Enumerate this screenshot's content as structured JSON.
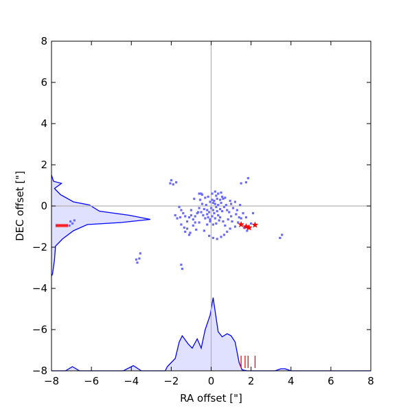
{
  "chart_data": {
    "type": "scatter",
    "title": "",
    "xlabel": "RA offset [\"]",
    "ylabel": "DEC offset [\"]",
    "xlim": [
      -8,
      8
    ],
    "ylim": [
      -8,
      8
    ],
    "xticks": [
      -8,
      -6,
      -4,
      -2,
      0,
      2,
      4,
      6,
      8
    ],
    "yticks": [
      -8,
      -6,
      -4,
      -2,
      0,
      2,
      4,
      6,
      8
    ],
    "xtick_labels": [
      "−8",
      "−6",
      "−4",
      "−2",
      "0",
      "2",
      "4",
      "6",
      "8"
    ],
    "ytick_labels": [
      "−8",
      "−6",
      "−4",
      "−2",
      "0",
      "2",
      "4",
      "6",
      "8"
    ],
    "grid": false,
    "reference_lines": {
      "x": 0,
      "y": 0,
      "color": "#b0b0b0"
    },
    "colors": {
      "points": "#6b6bff",
      "histogram_line": "#0000ff",
      "histogram_fill": "#e0e0ff",
      "markers": "#ff0000"
    },
    "series": [
      {
        "type": "scatter",
        "points": [
          [
            0.05,
            0.3
          ],
          [
            0.15,
            0.25
          ],
          [
            0.3,
            0.35
          ],
          [
            0.45,
            0.3
          ],
          [
            0.1,
            0.15
          ],
          [
            -0.05,
            0.2
          ],
          [
            0.2,
            0.1
          ],
          [
            0.35,
            0.05
          ],
          [
            0.5,
            0.15
          ],
          [
            0.6,
            0.35
          ],
          [
            0.7,
            0.4
          ],
          [
            0.55,
            0.45
          ],
          [
            0.25,
            0.5
          ],
          [
            0.0,
            -0.1
          ],
          [
            0.1,
            -0.2
          ],
          [
            -0.1,
            -0.3
          ],
          [
            0.15,
            -0.35
          ],
          [
            0.3,
            -0.25
          ],
          [
            -0.2,
            -0.4
          ],
          [
            0.05,
            -0.5
          ],
          [
            -0.15,
            -0.55
          ],
          [
            0.2,
            -0.6
          ],
          [
            0.35,
            -0.45
          ],
          [
            0.45,
            -0.15
          ],
          [
            0.55,
            -0.25
          ],
          [
            0.65,
            -0.05
          ],
          [
            0.75,
            0.05
          ],
          [
            0.8,
            -0.2
          ],
          [
            0.9,
            -0.3
          ],
          [
            0.4,
            -0.7
          ],
          [
            0.25,
            -0.85
          ],
          [
            0.1,
            -0.9
          ],
          [
            -0.05,
            -0.75
          ],
          [
            -0.3,
            -0.6
          ],
          [
            -0.4,
            -0.45
          ],
          [
            -0.5,
            -0.3
          ],
          [
            -0.35,
            -0.15
          ],
          [
            -0.25,
            0.05
          ],
          [
            -0.45,
            0.1
          ],
          [
            -0.6,
            -0.1
          ],
          [
            -0.7,
            -0.35
          ],
          [
            -0.8,
            -0.5
          ],
          [
            -0.9,
            -0.65
          ],
          [
            -1.0,
            -0.45
          ],
          [
            -1.1,
            -0.55
          ],
          [
            -1.2,
            -0.75
          ],
          [
            -1.3,
            -0.5
          ],
          [
            -1.4,
            -0.35
          ],
          [
            -1.5,
            -0.2
          ],
          [
            -1.6,
            -0.05
          ],
          [
            -1.5,
            -0.9
          ],
          [
            -1.35,
            -1.05
          ],
          [
            -1.2,
            -1.1
          ],
          [
            -1.05,
            -1.3
          ],
          [
            -0.9,
            -0.95
          ],
          [
            -0.75,
            -1.15
          ],
          [
            -0.6,
            -0.8
          ],
          [
            -1.7,
            -0.6
          ],
          [
            -1.8,
            -0.45
          ],
          [
            -1.55,
            -0.55
          ],
          [
            -1.3,
            -1.25
          ],
          [
            -1.1,
            -1.4
          ],
          [
            -0.65,
            -0.3
          ],
          [
            -0.55,
            0.3
          ],
          [
            -0.45,
            0.55
          ],
          [
            -0.3,
            0.4
          ],
          [
            -0.15,
            0.45
          ],
          [
            0.05,
            0.6
          ],
          [
            0.2,
            0.7
          ],
          [
            0.35,
            0.6
          ],
          [
            0.5,
            0.65
          ],
          [
            -0.5,
            0.6
          ],
          [
            -0.6,
            0.6
          ],
          [
            1.0,
            0.1
          ],
          [
            1.1,
            -0.1
          ],
          [
            1.2,
            0.2
          ],
          [
            1.3,
            -0.2
          ],
          [
            1.45,
            0.05
          ],
          [
            1.6,
            -0.35
          ],
          [
            1.75,
            -0.55
          ],
          [
            1.5,
            -0.6
          ],
          [
            1.35,
            -0.8
          ],
          [
            1.2,
            -1.0
          ],
          [
            1.05,
            -0.75
          ],
          [
            0.95,
            -1.1
          ],
          [
            0.8,
            -1.25
          ],
          [
            0.65,
            -1.4
          ],
          [
            0.5,
            -1.5
          ],
          [
            0.3,
            -1.6
          ],
          [
            0.1,
            -1.55
          ],
          [
            -0.1,
            -1.45
          ],
          [
            1.0,
            -0.5
          ],
          [
            0.85,
            -0.65
          ],
          [
            1.5,
            1.1
          ],
          [
            1.75,
            1.15
          ],
          [
            1.85,
            1.35
          ],
          [
            1.65,
            -1.05
          ],
          [
            1.8,
            -1.2
          ],
          [
            2.0,
            -0.85
          ],
          [
            2.1,
            -0.35
          ],
          [
            -2.05,
            1.1
          ],
          [
            -2.0,
            1.25
          ],
          [
            -1.9,
            1.05
          ],
          [
            -1.75,
            1.15
          ],
          [
            -3.55,
            -2.3
          ],
          [
            -3.6,
            -2.55
          ],
          [
            -3.75,
            -2.6
          ],
          [
            -3.7,
            -2.75
          ],
          [
            -1.5,
            -2.85
          ],
          [
            -1.45,
            -3.05
          ],
          [
            3.55,
            -1.4
          ],
          [
            3.45,
            -1.55
          ],
          [
            -7.05,
            -0.75
          ],
          [
            -6.95,
            -0.85
          ],
          [
            -6.85,
            -0.7
          ],
          [
            -7.1,
            -0.95
          ],
          [
            0.45,
            -0.55
          ],
          [
            0.6,
            -0.75
          ],
          [
            -0.2,
            -0.9
          ],
          [
            -0.35,
            -1.2
          ],
          [
            0.7,
            -0.95
          ],
          [
            0.95,
            0.25
          ],
          [
            -0.85,
            0.35
          ],
          [
            -0.2,
            -0.2
          ],
          [
            0.25,
            -0.05
          ],
          [
            -0.05,
            -0.65
          ],
          [
            1.25,
            -0.4
          ],
          [
            1.4,
            -0.55
          ],
          [
            -1.0,
            -0.2
          ],
          [
            -0.8,
            -0.8
          ]
        ]
      }
    ],
    "x_histogram": [
      [
        -8,
        -8
      ],
      [
        -7.6,
        -8
      ],
      [
        -7.3,
        -8
      ],
      [
        -6.95,
        -7.8
      ],
      [
        -6.6,
        -8
      ],
      [
        -4.4,
        -8
      ],
      [
        -3.9,
        -7.75
      ],
      [
        -3.5,
        -8
      ],
      [
        -2.3,
        -8
      ],
      [
        -2.2,
        -7.8
      ],
      [
        -2.1,
        -7.7
      ],
      [
        -1.8,
        -7.4
      ],
      [
        -1.6,
        -6.6
      ],
      [
        -1.45,
        -6.3
      ],
      [
        -1.15,
        -6.7
      ],
      [
        -0.95,
        -6.9
      ],
      [
        -0.7,
        -6.45
      ],
      [
        -0.5,
        -6.9
      ],
      [
        -0.3,
        -6.0
      ],
      [
        -0.05,
        -5.3
      ],
      [
        0.1,
        -4.45
      ],
      [
        0.35,
        -6.1
      ],
      [
        0.55,
        -6.35
      ],
      [
        0.8,
        -6.2
      ],
      [
        1.0,
        -6.3
      ],
      [
        1.2,
        -6.6
      ],
      [
        1.4,
        -7.6
      ],
      [
        1.55,
        -7.95
      ],
      [
        1.8,
        -8
      ],
      [
        3.2,
        -8
      ],
      [
        3.5,
        -7.9
      ],
      [
        3.7,
        -7.9
      ],
      [
        4.0,
        -8
      ],
      [
        8,
        -8
      ]
    ],
    "y_histogram": [
      [
        -8,
        1.5
      ],
      [
        -7.9,
        1.2
      ],
      [
        -7.5,
        1.1
      ],
      [
        -7.85,
        0.85
      ],
      [
        -7.8,
        0.8
      ],
      [
        -7.55,
        0.55
      ],
      [
        -6.9,
        0.2
      ],
      [
        -6.1,
        0.05
      ],
      [
        -5.6,
        -0.25
      ],
      [
        -4.1,
        -0.45
      ],
      [
        -3.05,
        -0.65
      ],
      [
        -4.5,
        -0.8
      ],
      [
        -6.2,
        -0.9
      ],
      [
        -6.9,
        -1.2
      ],
      [
        -7.45,
        -1.6
      ],
      [
        -7.8,
        -1.95
      ],
      [
        -7.85,
        -2.6
      ],
      [
        -7.95,
        -3.3
      ],
      [
        -8,
        -3.4
      ]
    ],
    "markers": {
      "stars": [
        [
          1.5,
          -0.9
        ],
        [
          1.75,
          -1.0
        ],
        [
          1.9,
          -1.05
        ],
        [
          2.2,
          -0.92
        ]
      ],
      "rug_x": [
        1.5,
        1.7,
        1.85,
        2.2
      ],
      "rug_y": [
        -0.9,
        -0.95,
        -1.0
      ]
    }
  }
}
